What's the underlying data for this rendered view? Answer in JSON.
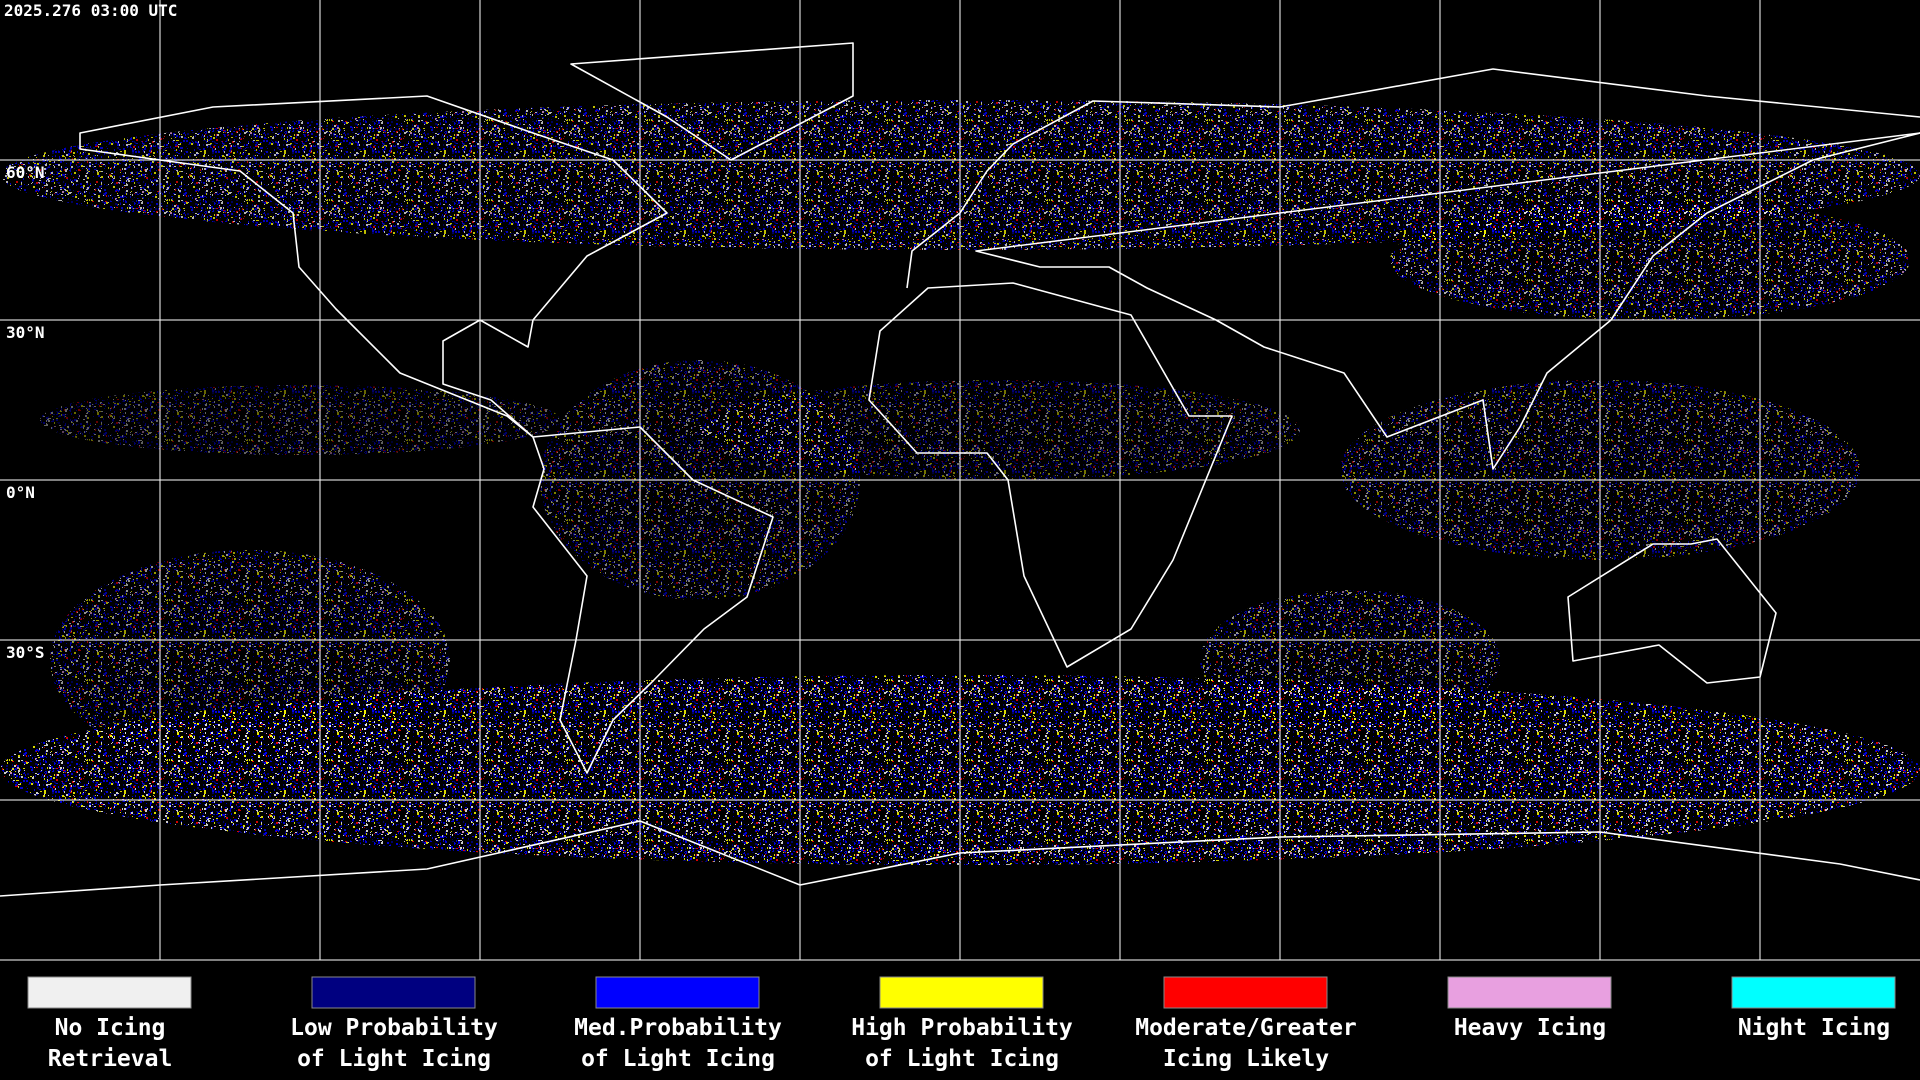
{
  "header": {
    "title": "2025.276 03:00 UTC"
  },
  "map": {
    "lon_range": [
      -180,
      180
    ],
    "lat_range": [
      90,
      -90
    ],
    "meridians": [
      -150,
      -120,
      -90,
      -60,
      -30,
      0,
      30,
      60,
      90,
      120,
      150
    ],
    "parallels": [
      {
        "value": 60,
        "label": "60°N"
      },
      {
        "value": 30,
        "label": "30°N"
      },
      {
        "value": 0,
        "label": "0°N"
      },
      {
        "value": -30,
        "label": "30°S"
      },
      {
        "value": -60,
        "label": null
      }
    ]
  },
  "legend": [
    {
      "lines": [
        "No Icing",
        "Retrieval"
      ],
      "color": "#f0f0f0"
    },
    {
      "lines": [
        "Low Probability",
        "of Light Icing"
      ],
      "color": "#000080"
    },
    {
      "lines": [
        "Med.Probability",
        "of Light Icing"
      ],
      "color": "#0000ff"
    },
    {
      "lines": [
        "High Probability",
        "of Light Icing"
      ],
      "color": "#ffff00"
    },
    {
      "lines": [
        "Moderate/Greater",
        "Icing Likely"
      ],
      "color": "#ff0000"
    },
    {
      "lines": [
        "Heavy Icing"
      ],
      "color": "#e8a0e0"
    },
    {
      "lines": [
        "Night Icing"
      ],
      "color": "#00ffff"
    }
  ]
}
